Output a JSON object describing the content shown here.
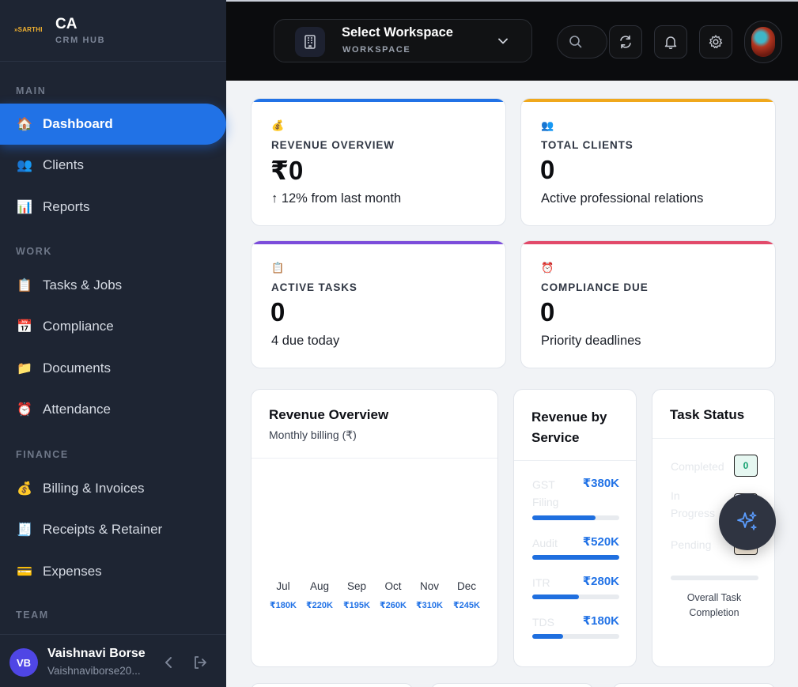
{
  "brand": {
    "logo_text": "SARTHI",
    "title": "CA",
    "subtitle": "CRM HUB"
  },
  "sidebar": {
    "sections": [
      "MAIN",
      "WORK",
      "FINANCE",
      "TEAM"
    ],
    "items": [
      {
        "label": "Dashboard",
        "icon": "house-icon",
        "active": true
      },
      {
        "label": "Clients",
        "icon": "users-icon"
      },
      {
        "label": "Reports",
        "icon": "bar-chart-icon"
      },
      {
        "label": "Tasks & Jobs",
        "icon": "clipboard-icon"
      },
      {
        "label": "Compliance",
        "icon": "calendar-icon"
      },
      {
        "label": "Documents",
        "icon": "folder-icon"
      },
      {
        "label": "Attendance",
        "icon": "alarm-clock-icon"
      },
      {
        "label": "Billing & Invoices",
        "icon": "money-bag-icon"
      },
      {
        "label": "Receipts & Retainer",
        "icon": "receipt-icon"
      },
      {
        "label": "Expenses",
        "icon": "credit-card-icon"
      }
    ],
    "user": {
      "initials": "VB",
      "name": "Vaishnavi Borse",
      "email": "Vaishnaviborse20..."
    }
  },
  "header": {
    "workspace_title": "Select Workspace",
    "workspace_subtitle": "WORKSPACE"
  },
  "stats": [
    {
      "emoji": "💰",
      "title": "REVENUE OVERVIEW",
      "value": "₹0",
      "sub": "↑ 12% from last month",
      "color": "#2172e6"
    },
    {
      "emoji": "👥",
      "title": "TOTAL CLIENTS",
      "value": "0",
      "sub": "Active professional relations",
      "color": "#f0a81c"
    },
    {
      "emoji": "📋",
      "title": "ACTIVE TASKS",
      "value": "0",
      "sub": "4 due today",
      "color": "#7c4ddb"
    },
    {
      "emoji": "⏰",
      "title": "COMPLIANCE DUE",
      "value": "0",
      "sub": "Priority deadlines",
      "color": "#e24a6a"
    }
  ],
  "revenue_overview": {
    "title": "Revenue Overview",
    "subtitle": "Monthly billing (₹)",
    "months": [
      {
        "month": "Jul",
        "value": "₹180K"
      },
      {
        "month": "Aug",
        "value": "₹220K"
      },
      {
        "month": "Sep",
        "value": "₹195K"
      },
      {
        "month": "Oct",
        "value": "₹260K"
      },
      {
        "month": "Nov",
        "value": "₹310K"
      },
      {
        "month": "Dec",
        "value": "₹245K"
      }
    ]
  },
  "revenue_by_service": {
    "title_line1": "Revenue by",
    "title_line2": "Service",
    "services": [
      {
        "name_line1": "GST",
        "name_line2": "Filing",
        "value": "₹380K",
        "fraction": 0.73
      },
      {
        "name_line1": "Audit",
        "name_line2": "",
        "value": "₹520K",
        "fraction": 1.0
      },
      {
        "name_line1": "ITR",
        "name_line2": "",
        "value": "₹280K",
        "fraction": 0.54
      },
      {
        "name_line1": "TDS",
        "name_line2": "",
        "value": "₹180K",
        "fraction": 0.35
      }
    ]
  },
  "task_status": {
    "title": "Task Status",
    "rows": [
      {
        "line1": "Completed",
        "line2": "",
        "count": "0"
      },
      {
        "line1": "In",
        "line2": "Progress",
        "count": "0"
      },
      {
        "line1": "Pending",
        "line2": "",
        "count": "0"
      }
    ],
    "completion_label_line1": "Overall Task",
    "completion_label_line2": "Completion",
    "completion_fraction": 0
  },
  "fab": {
    "icon": "sparkles-icon"
  }
}
